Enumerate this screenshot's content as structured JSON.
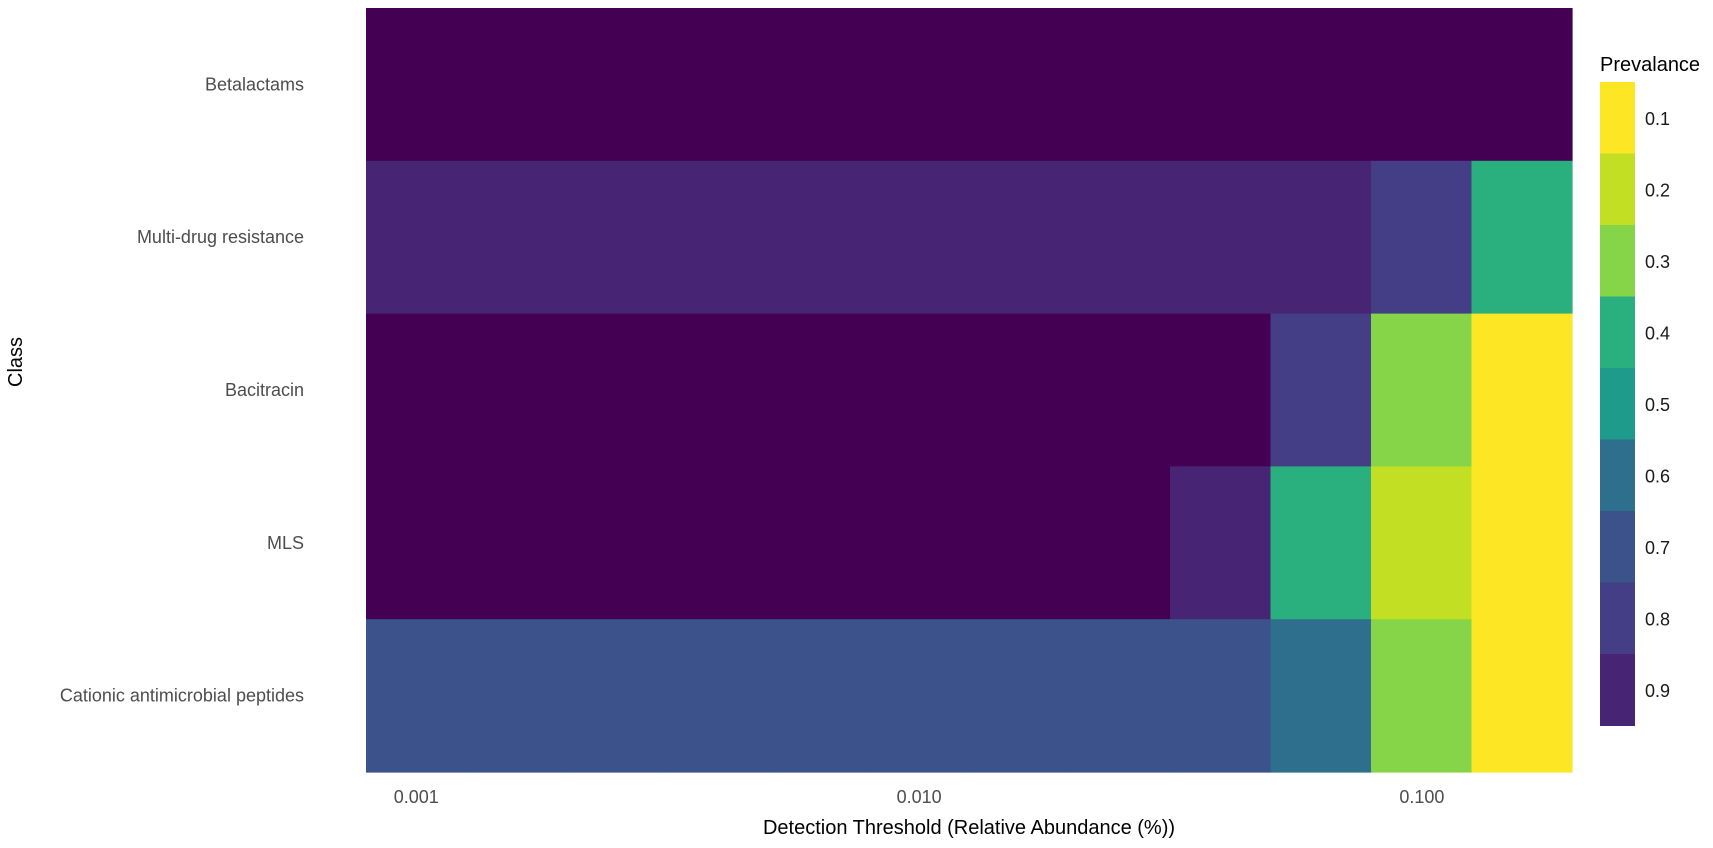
{
  "chart_data": {
    "type": "heatmap",
    "xlabel": "Detection Threshold (Relative Abundance (%))",
    "ylabel": "Class",
    "x_scale": "log",
    "x_ticks": [
      {
        "value": 0.001,
        "label": "0.001"
      },
      {
        "value": 0.01,
        "label": "0.010"
      },
      {
        "value": 0.1,
        "label": "0.100"
      }
    ],
    "x_columns": [
      0.001,
      0.00158,
      0.00251,
      0.00398,
      0.00631,
      0.01,
      0.0158,
      0.0251,
      0.0398,
      0.0631,
      0.1,
      0.158
    ],
    "rows": [
      "Betalactams",
      "Multi-drug resistance",
      "Bacitracin",
      "MLS",
      "Cationic antimicrobial peptides"
    ],
    "values": [
      [
        1.0,
        1.0,
        1.0,
        1.0,
        1.0,
        1.0,
        1.0,
        1.0,
        1.0,
        1.0,
        1.0,
        1.0
      ],
      [
        0.87,
        0.87,
        0.87,
        0.87,
        0.87,
        0.87,
        0.87,
        0.86,
        0.85,
        0.85,
        0.8,
        0.42
      ],
      [
        1.0,
        1.0,
        1.0,
        1.0,
        1.0,
        1.0,
        0.97,
        0.96,
        0.95,
        0.8,
        0.32,
        0.05
      ],
      [
        0.95,
        0.95,
        0.95,
        0.95,
        0.95,
        0.95,
        0.95,
        0.95,
        0.85,
        0.42,
        0.15,
        0.12
      ],
      [
        0.72,
        0.72,
        0.72,
        0.72,
        0.72,
        0.72,
        0.71,
        0.69,
        0.65,
        0.63,
        0.3,
        0.13
      ]
    ],
    "legend": {
      "title": "Prevalance",
      "placement": "right",
      "bins": [
        {
          "label": "0.1",
          "color": "#fde725"
        },
        {
          "label": "0.2",
          "color": "#c2df23"
        },
        {
          "label": "0.3",
          "color": "#86d549"
        },
        {
          "label": "0.4",
          "color": "#2ab07f"
        },
        {
          "label": "0.5",
          "color": "#1e9b8a"
        },
        {
          "label": "0.6",
          "color": "#2e6f8e"
        },
        {
          "label": "0.7",
          "color": "#3b528b"
        },
        {
          "label": "0.8",
          "color": "#433e85"
        },
        {
          "label": "0.9",
          "color": "#482475"
        }
      ],
      "extra_color": "#440154"
    }
  }
}
